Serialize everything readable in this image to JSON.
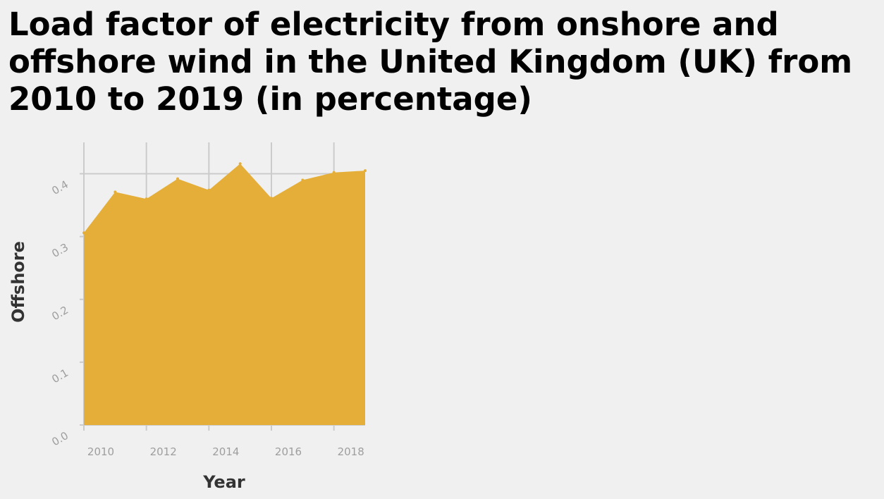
{
  "colors": {
    "background": "#f0f0f0",
    "area_fill": "#e5ae38",
    "grid": "#cbcbcb",
    "tick_label": "#9e9e9e",
    "axis_label": "#333333"
  },
  "chart_data": {
    "type": "area",
    "title": "Load factor of electricity from onshore and offshore wind in the United Kingdom (UK) from 2010 to 2019 (in percentage)",
    "xlabel": "Year",
    "ylabel": "Offshore",
    "x": [
      2010,
      2011,
      2012,
      2013,
      2014,
      2015,
      2016,
      2017,
      2018,
      2019
    ],
    "series": [
      {
        "values": [
          0.306,
          0.371,
          0.36,
          0.392,
          0.374,
          0.416,
          0.361,
          0.39,
          0.402,
          0.405
        ]
      }
    ],
    "xlim": [
      2010,
      2019
    ],
    "ylim": [
      0,
      0.45
    ],
    "xticks": [
      2010,
      2012,
      2014,
      2016,
      2018
    ],
    "xtick_labels": [
      "2010",
      "2012",
      "2014",
      "2016",
      "2018"
    ],
    "yticks": [
      0,
      0.1,
      0.2,
      0.3,
      0.4
    ],
    "ytick_labels": [
      "0.0",
      "0.1",
      "0.2",
      "0.3",
      "0.4"
    ],
    "grid": true,
    "legend": "none"
  }
}
